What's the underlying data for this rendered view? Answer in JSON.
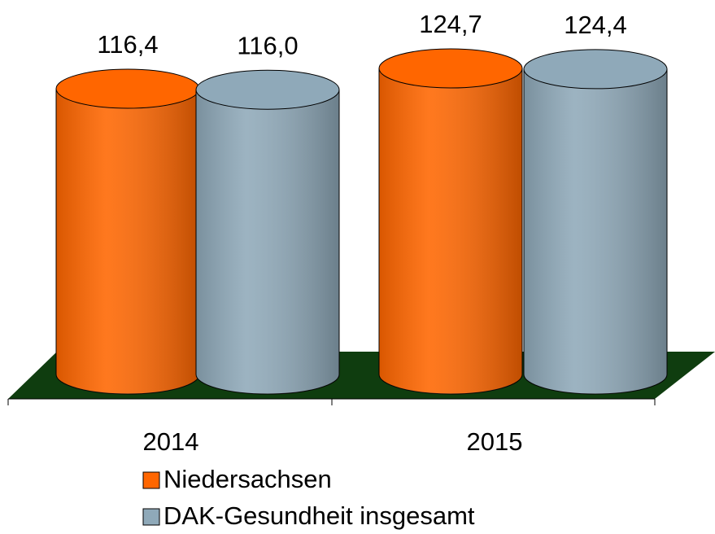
{
  "chart_data": {
    "type": "cylinder-bar",
    "categories": [
      "2014",
      "2015"
    ],
    "series": [
      {
        "name": "Niedersachsen",
        "color": "#ff6600",
        "values": [
          116.4,
          124.7
        ],
        "value_labels": [
          "116,4",
          "124,7"
        ]
      },
      {
        "name": "DAK-Gesundheit insgesamt",
        "color": "#8fa9b9",
        "values": [
          116.0,
          124.4
        ],
        "value_labels": [
          "116,0",
          "124,4"
        ]
      }
    ],
    "floor_color": "#0f3d0f"
  }
}
